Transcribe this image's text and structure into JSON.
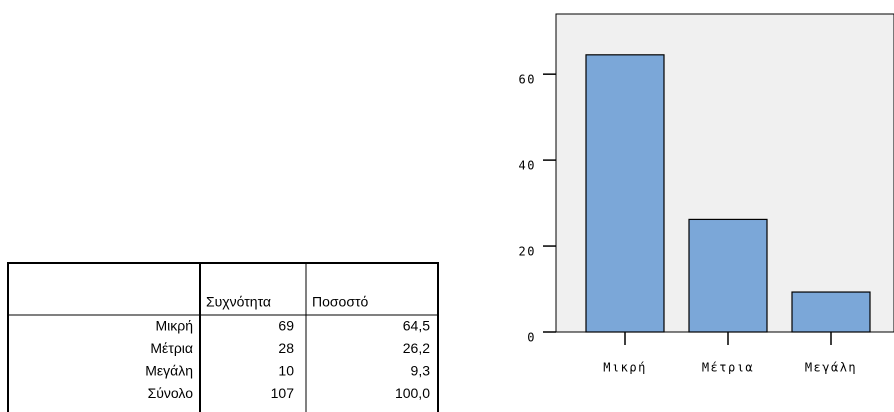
{
  "chart_data": {
    "type": "bar",
    "categories": [
      "Μικρή",
      "Μέτρια",
      "Μεγάλη"
    ],
    "values": [
      64.5,
      26.2,
      9.3
    ],
    "color": "#7ba7d8",
    "ylim": [
      0,
      74
    ],
    "yticks": [
      0,
      20,
      40,
      60
    ],
    "background": "#f0f0f0"
  },
  "table": {
    "columns": [
      "Συχνότητα",
      "Ποσοστό"
    ],
    "rows": [
      [
        "Μικρή",
        "69",
        "64,5"
      ],
      [
        "Μέτρια",
        "28",
        "26,2"
      ],
      [
        "Μεγάλη",
        "10",
        "9,3"
      ],
      [
        "Σύνολο",
        "107",
        "100,0"
      ]
    ]
  }
}
